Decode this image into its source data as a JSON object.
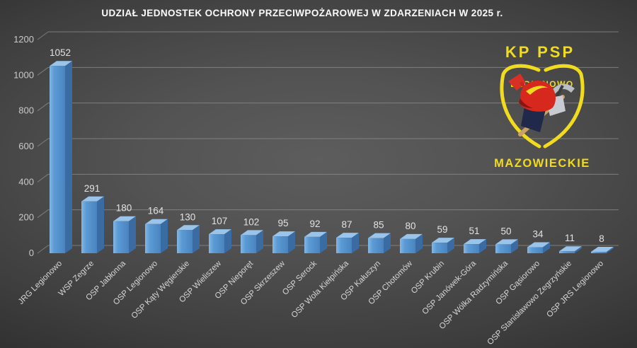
{
  "chart_data": {
    "type": "bar",
    "style": "3d-column",
    "title": "UDZIAŁ JEDNOSTEK OCHRONY PRZECIWPOŻAROWEJ W ZDARZENIACH W 2025 r.",
    "categories": [
      "JRG Legionowo",
      "WSP Zegrze",
      "OSP Jabłonna",
      "OSP Legionowo",
      "OSP Kąty Węgierskie",
      "OSP Wieliszew",
      "OSP Nieporęt",
      "OSP Skrzeszew",
      "OSP Serock",
      "OSP Wola Kiełpińska",
      "OSP Kałuszyn",
      "OSP Chotomów",
      "OSP Krubin",
      "OSP Janówek-Góra",
      "OSP Wólka Radzymińska",
      "OSP Gąsiorowo",
      "OSP Stanisławowo Zegrzyńskie",
      "OSP JRS Legionowo"
    ],
    "values": [
      1052,
      291,
      180,
      164,
      130,
      107,
      102,
      95,
      92,
      87,
      85,
      80,
      59,
      51,
      50,
      34,
      11,
      8
    ],
    "xlabel": "",
    "ylabel": "",
    "ylim": [
      0,
      1200
    ],
    "yticks": [
      0,
      200,
      400,
      600,
      800,
      1000,
      1200
    ],
    "grid": true,
    "legend": false,
    "data_labels": true
  },
  "logo": {
    "top_text": "KP PSP",
    "shield_text": "LEGIONOWO",
    "bottom_text": "MAZOWIECKIE",
    "accent_color": "#f0db1e",
    "helmet_color": "#d7281e"
  },
  "colors": {
    "background_center": "#5d5d5d",
    "background_edge": "#181818",
    "gridline": "#8f8f8f",
    "bar_front": "#5b9bd5",
    "bar_front_light": "#85b6e3",
    "bar_front_dark": "#4a84bf",
    "bar_side": "#3a6ba3",
    "bar_top": "#9ac4ea",
    "title_text": "#fcfcfc",
    "axis_text": "#c9c9c9",
    "value_text": "#e2e2e2",
    "category_text": "#d6d6d6"
  }
}
